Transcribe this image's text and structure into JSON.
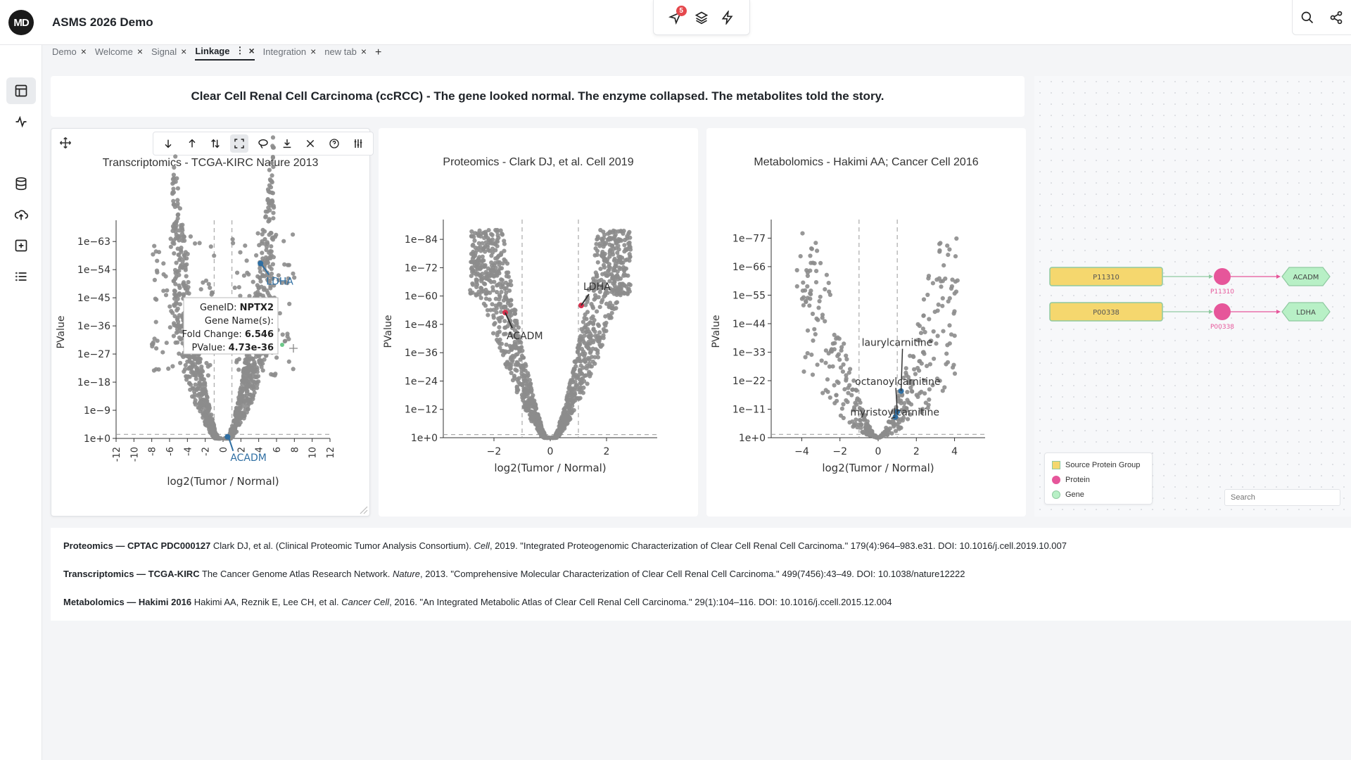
{
  "app": {
    "logo_text": "MD",
    "title": "ASMS 2026 Demo",
    "notification_count": "5"
  },
  "top_tools": [
    "navigate-icon",
    "layers-icon",
    "bolt-icon"
  ],
  "right_tools": [
    "search-icon",
    "share-icon"
  ],
  "tabs": [
    {
      "label": "Demo",
      "active": false
    },
    {
      "label": "Welcome",
      "active": false
    },
    {
      "label": "Signal",
      "active": false
    },
    {
      "label": "Linkage",
      "active": true
    },
    {
      "label": "Integration",
      "active": false
    },
    {
      "label": "new tab",
      "active": false
    }
  ],
  "tab_close_symbol": "×",
  "tab_add_symbol": "+",
  "sidebar": [
    "dashboard-icon",
    "activity-icon",
    "database-icon",
    "upload-icon",
    "add-box-icon",
    "list-icon"
  ],
  "banner": "Clear Cell Renal Cell Carcinoma (ccRCC) - The gene looked normal. The enzyme collapsed. The metabolites told the story.",
  "plot_toolbar": [
    "sort-down-icon",
    "sort-up-icon",
    "sort-both-icon",
    "fullscreen-icon",
    "lasso-icon",
    "download-icon",
    "close-icon",
    "help-icon",
    "settings-icon"
  ],
  "colors": {
    "point": "#8c8c8c",
    "highlight_red": "#d6304d",
    "highlight_blue": "#2f6fa3",
    "node_yellow": "#f5d76e",
    "node_green_border": "#8fc9a0",
    "protein_pink": "#e6569a",
    "gene_green": "#b8f0c6"
  },
  "chart_data": [
    {
      "type": "scatter",
      "title": "Transcriptomics - TCGA-KIRC Nature 2013",
      "xlabel": "log2(Tumor / Normal)",
      "ylabel": "PValue",
      "x_ticks": [
        "-12",
        "-10",
        "-8",
        "-6",
        "-4",
        "-2",
        "0",
        "2",
        "4",
        "6",
        "8",
        "10",
        "12"
      ],
      "y_ticks": [
        "1e+0",
        "1e−9",
        "1e−18",
        "1e−27",
        "1e−36",
        "1e−45",
        "1e−54",
        "1e−63"
      ],
      "y_scale": "-log10",
      "xlim": [
        -12,
        12
      ],
      "highlights": [
        {
          "label": "LDHA",
          "x": 4.2,
          "neglog10p": 56
        },
        {
          "label": "ACADM",
          "x": 0.5,
          "neglog10p": 0.5
        }
      ],
      "tooltip": {
        "geneid_label": "GeneID:",
        "geneid": "NPTX2",
        "gene_names_label": "Gene Name(s):",
        "fold_label": "Fold Change:",
        "fold": "6.546",
        "pvalue_label": "PValue:",
        "pvalue": "4.73e-36"
      }
    },
    {
      "type": "scatter",
      "title": "Proteomics - Clark DJ, et al. Cell 2019",
      "xlabel": "log2(Tumor / Normal)",
      "ylabel": "PValue",
      "x_ticks": [
        "−2",
        "0",
        "2"
      ],
      "y_ticks": [
        "1e+0",
        "1e−12",
        "1e−24",
        "1e−36",
        "1e−48",
        "1e−60",
        "1e−72",
        "1e−84"
      ],
      "y_scale": "-log10",
      "xlim": [
        -3.8,
        3.8
      ],
      "highlights": [
        {
          "label": "LDHA",
          "x": 1.1,
          "neglog10p": 56
        },
        {
          "label": "ACADM",
          "x": -1.6,
          "neglog10p": 53
        }
      ]
    },
    {
      "type": "scatter",
      "title": "Metabolomics - Hakimi AA; Cancer Cell 2016",
      "xlabel": "log2(Tumor / Normal)",
      "ylabel": "PValue",
      "x_ticks": [
        "−4",
        "−2",
        "0",
        "2",
        "4"
      ],
      "y_ticks": [
        "1e+0",
        "1e−11",
        "1e−22",
        "1e−33",
        "1e−44",
        "1e−55",
        "1e−66",
        "1e−77"
      ],
      "y_scale": "-log10",
      "xlim": [
        -5.6,
        5.6
      ],
      "highlights": [
        {
          "label": "laurylcarnitine",
          "x": 1.2,
          "neglog10p": 18
        },
        {
          "label": "octanoylcarnitine",
          "x": 1.0,
          "neglog10p": 10
        },
        {
          "label": "myristoylcarnitine",
          "x": 0.9,
          "neglog10p": 8
        }
      ]
    }
  ],
  "graph": {
    "rows": [
      {
        "group": "P11310",
        "protein": "P11310",
        "gene": "ACADM"
      },
      {
        "group": "P00338",
        "protein": "P00338",
        "gene": "LDHA"
      }
    ],
    "legend": [
      {
        "label": "Source Protein Group",
        "kind": "square"
      },
      {
        "label": "Protein",
        "kind": "protein"
      },
      {
        "label": "Gene",
        "kind": "gene"
      }
    ],
    "search_placeholder": "Search"
  },
  "references": [
    {
      "bold": "Proteomics — CPTAC PDC000127",
      "pre": "Clark DJ, et al. (Clinical Proteomic Tumor Analysis Consortium).",
      "journal": "Cell",
      "post": ", 2019. \"Integrated Proteogenomic Characterization of Clear Cell Renal Cell Carcinoma.\" 179(4):964–983.e31. DOI: 10.1016/j.cell.2019.10.007"
    },
    {
      "bold": "Transcriptomics — TCGA-KIRC",
      "pre": "The Cancer Genome Atlas Research Network.",
      "journal": "Nature",
      "post": ", 2013. \"Comprehensive Molecular Characterization of Clear Cell Renal Cell Carcinoma.\" 499(7456):43–49. DOI: 10.1038/nature12222"
    },
    {
      "bold": "Metabolomics — Hakimi 2016",
      "pre": "Hakimi AA, Reznik E, Lee CH, et al.",
      "journal": "Cancer Cell",
      "post": ", 2016. \"An Integrated Metabolic Atlas of Clear Cell Renal Cell Carcinoma.\" 29(1):104–116. DOI: 10.1016/j.ccell.2015.12.004"
    }
  ]
}
